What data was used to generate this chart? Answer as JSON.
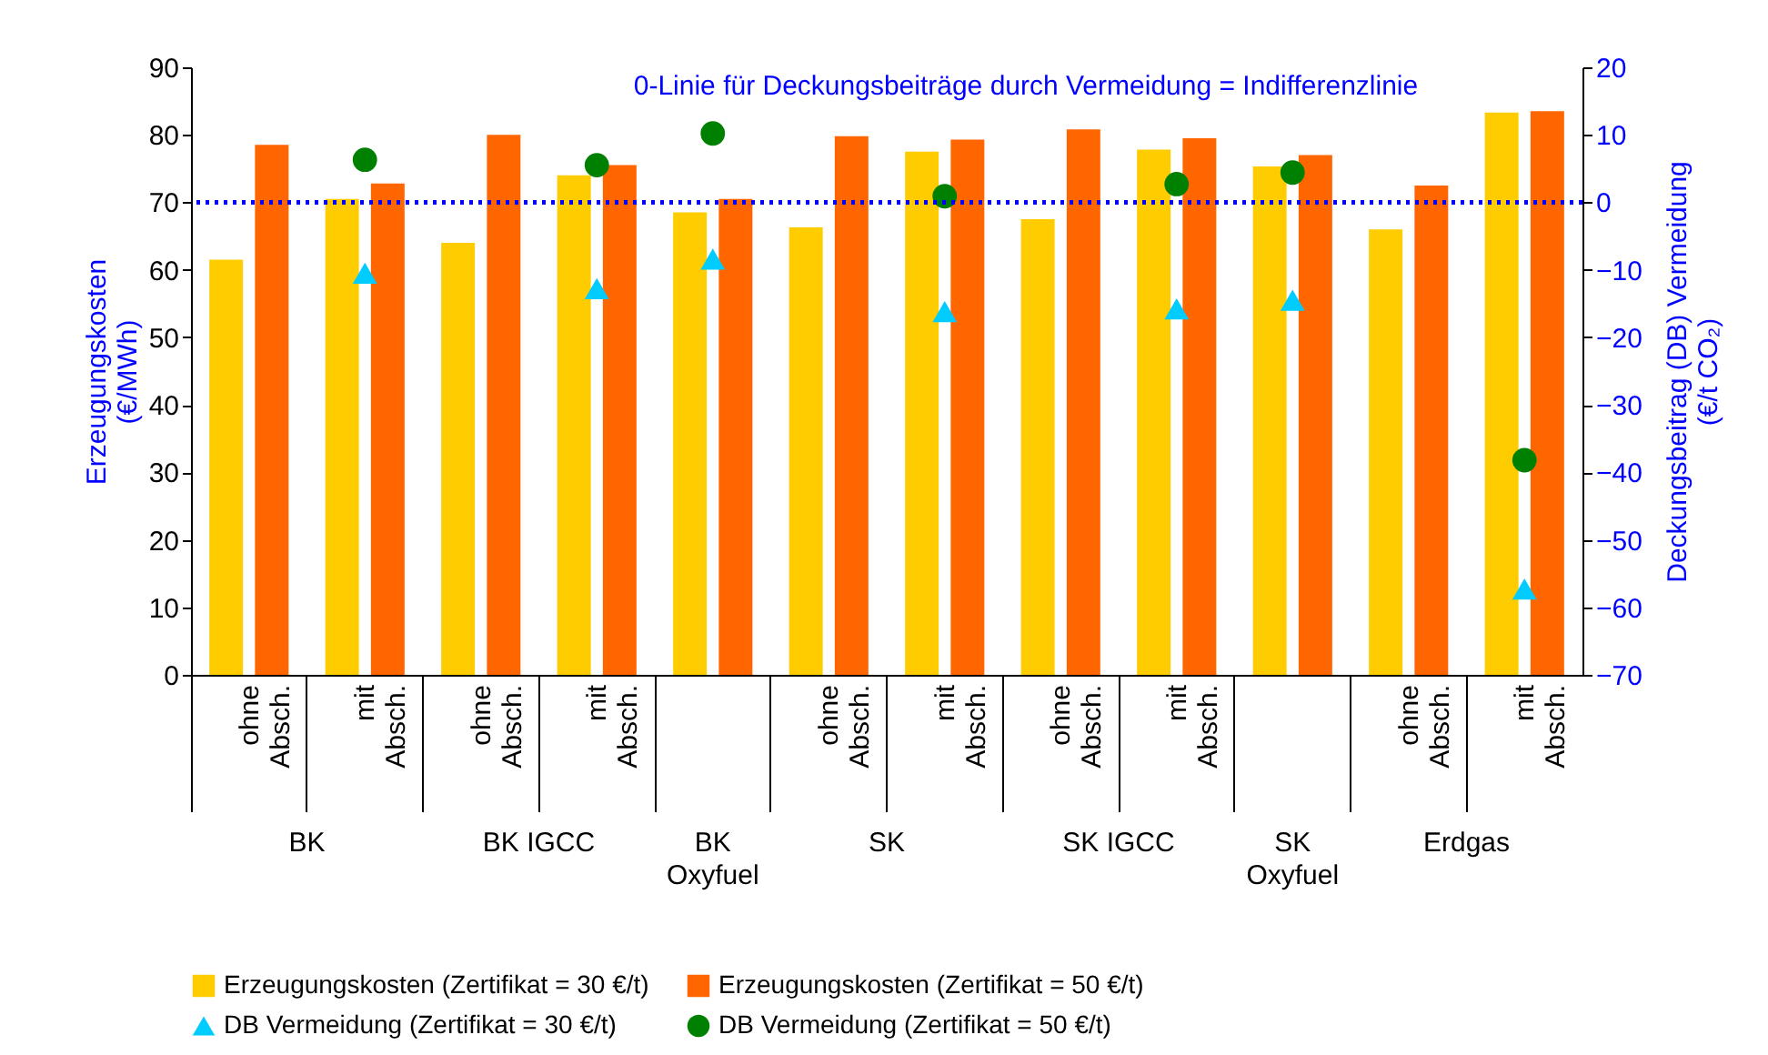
{
  "chart_data": {
    "type": "bar",
    "categories": [
      "ohne Absch.",
      "mit Absch.",
      "ohne Absch.",
      "mit Absch.",
      null,
      "ohne Absch.",
      "mit Absch.",
      "ohne Absch.",
      "mit Absch.",
      null,
      "ohne Absch.",
      "mit Absch."
    ],
    "annotations": [
      "BK",
      "BK IGCC",
      "BK Oxyfuel",
      "SK",
      "SK IGCC",
      "SK Oxyfuel",
      "Erdgas"
    ],
    "ylabel": "Erzeugungskosten (€/MWh)",
    "y2label": "Deckungsbeitrag (DB) Vermeidung (€/t CO₂)",
    "series": [
      {
        "name": "Erzeugungskosten (Zertifikat = 30 €/t)",
        "color": "#ffcc00",
        "values": [
          61.5,
          70.5,
          64,
          74,
          68.5,
          66.3,
          77.5,
          67.5,
          77.8,
          75.3,
          66,
          83.3
        ]
      },
      {
        "name": "Erzeugungskosten (Zertifikat = 50 €/t)",
        "color": "#ff6600",
        "values": [
          78.5,
          72.8,
          80,
          75.5,
          70.5,
          79.8,
          79.3,
          80.8,
          79.5,
          77,
          72.5,
          83.5
        ]
      },
      {
        "name": "DB Vermeidung (Zertifikat = 30 €/t)",
        "type": "scatter",
        "marker": "triangle",
        "axis": "y2",
        "color": "#00ccff",
        "values": [
          null,
          -10.5,
          null,
          -12.8,
          -8.4,
          null,
          -16.2,
          null,
          -15.8,
          -14.5,
          null,
          -57.3
        ]
      },
      {
        "name": "DB Vermeidung (Zertifikat = 50 €/t)",
        "type": "scatter",
        "marker": "circle",
        "axis": "y2",
        "color": "#008000",
        "values": [
          null,
          6.3,
          null,
          5.5,
          10.2,
          null,
          0.9,
          null,
          2.7,
          4.4,
          null,
          -38.2
        ]
      }
    ],
    "ylim": [
      0,
      90
    ],
    "yticks": [
      0,
      10,
      20,
      30,
      40,
      50,
      60,
      70,
      80,
      90
    ],
    "y2lim": [
      -70,
      20
    ],
    "y2ticks": [
      -70,
      -60,
      -50,
      -40,
      -30,
      -20,
      -10,
      0,
      10,
      20
    ],
    "ref_lines": [
      {
        "axis": "y2",
        "value": 0,
        "label": "0-Linie für Deckungsbeiträge durch Vermeidung = Indifferenzlinie",
        "color": "#0000ff",
        "line_style": "dotted"
      }
    ],
    "legend": "bottom"
  }
}
